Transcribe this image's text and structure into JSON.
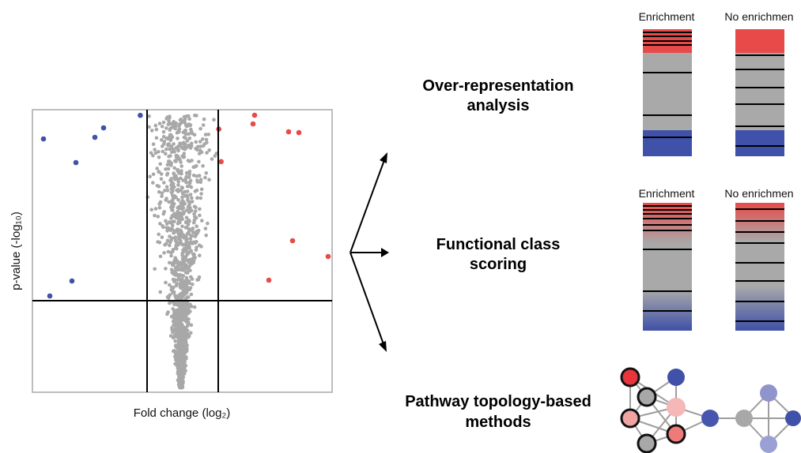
{
  "volcano": {
    "xlabel": "Fold change (log₂)",
    "ylabel": "p-value (-log₁₀)"
  },
  "methods": {
    "ora": {
      "line1": "Over-representation",
      "line2": "analysis"
    },
    "fcs": {
      "line1": "Functional class",
      "line2": "scoring"
    },
    "pt": {
      "line1": "Pathway topology-based",
      "line2": "methods"
    }
  },
  "bars": {
    "enrichment_label": "Enrichment",
    "no_enrichment_label": "No enrichmen"
  },
  "colors": {
    "up": "#e84a4a",
    "down": "#3f51a8",
    "neutral": "#a8a8a8",
    "bar_gray": "#a9a9a9"
  }
}
